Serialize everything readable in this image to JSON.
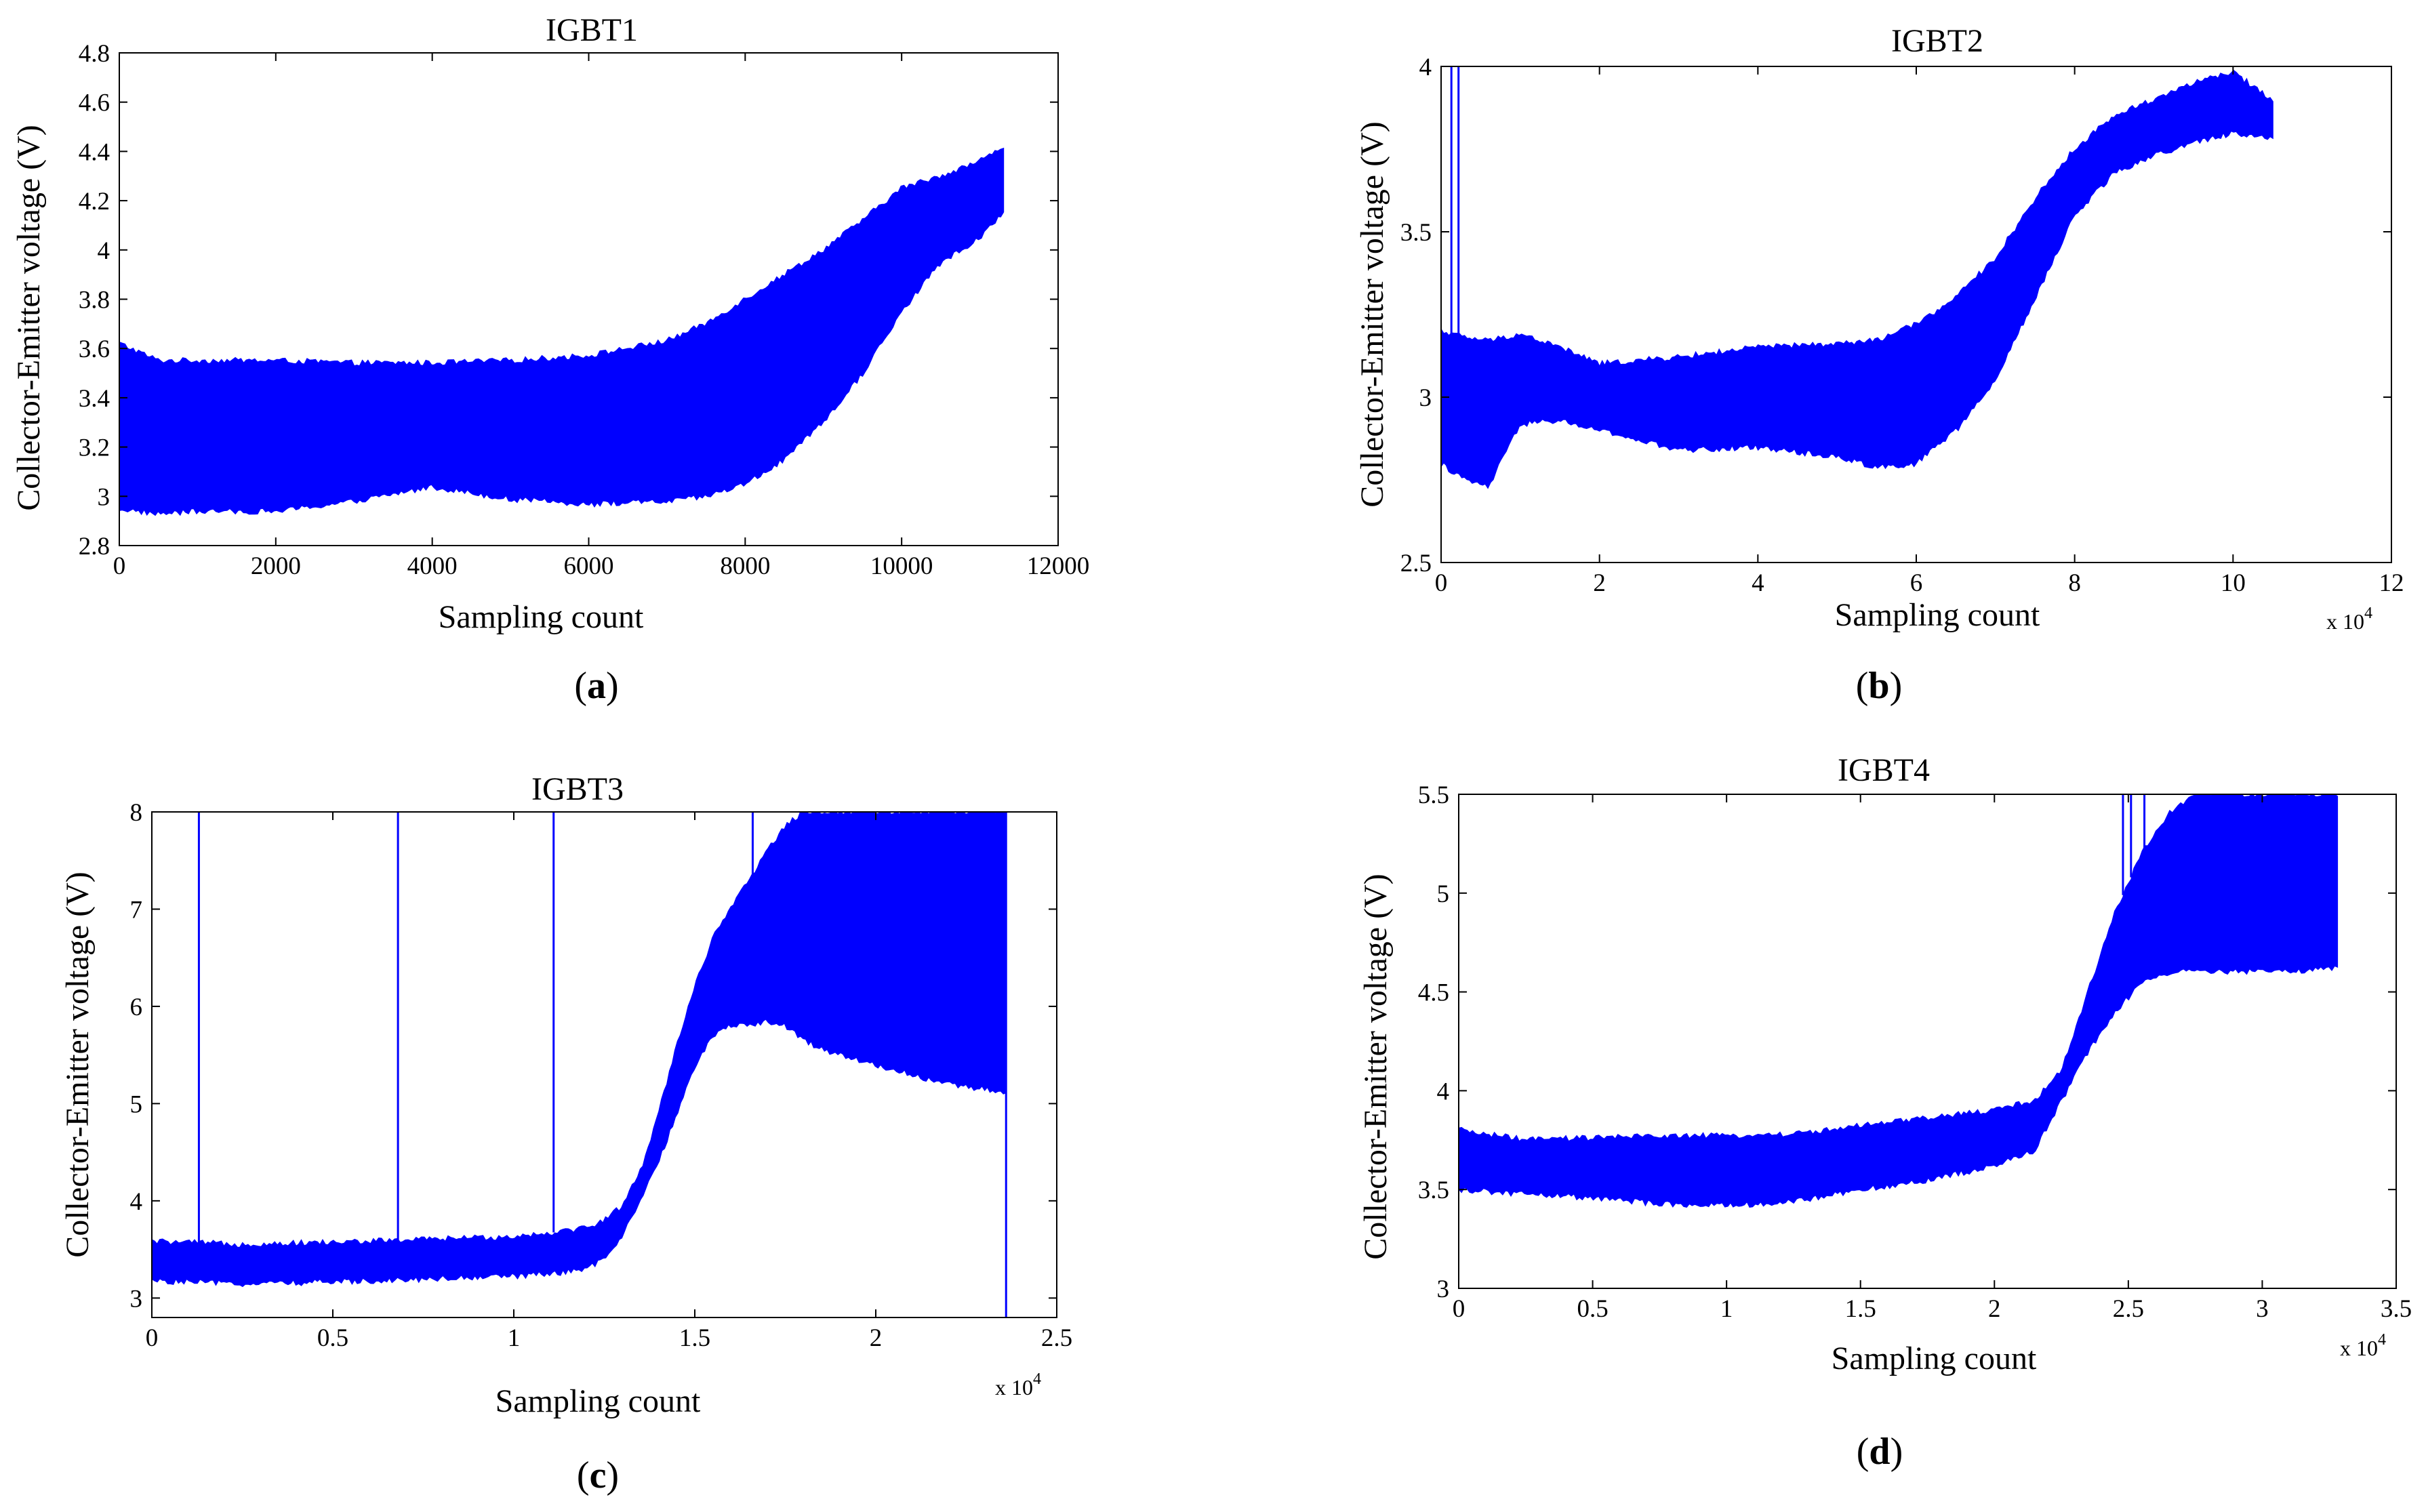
{
  "colors": {
    "series": "#0000ff",
    "axes": "#000000",
    "background": "#ffffff"
  },
  "chart_data": [
    {
      "type": "line",
      "panel": "a",
      "caption": {
        "open": "(",
        "letter": "a",
        "close": ")"
      },
      "title": "IGBT1",
      "xlabel": "Sampling count",
      "ylabel": "Collector-Emitter voltage (V)",
      "xlim": [
        0,
        12000
      ],
      "ylim": [
        2.8,
        4.8
      ],
      "xticks": [
        0,
        2000,
        4000,
        6000,
        8000,
        10000,
        12000
      ],
      "xtick_labels": [
        "0",
        "2000",
        "4000",
        "6000",
        "8000",
        "10000",
        "12000"
      ],
      "yticks": [
        2.8,
        3.0,
        3.2,
        3.4,
        3.6,
        3.8,
        4.0,
        4.2,
        4.4,
        4.6,
        4.8
      ],
      "ytick_labels": [
        "2.8",
        "3",
        "3.2",
        "3.4",
        "3.6",
        "3.8",
        "4",
        "4.2",
        "4.4",
        "4.6",
        "4.8"
      ],
      "x_multiplier": null,
      "series": [
        {
          "name": "Collector-Emitter voltage",
          "x": [
            0,
            500,
            1000,
            2000,
            3000,
            4000,
            5000,
            6000,
            7000,
            7500,
            8000,
            8500,
            9000,
            9500,
            10000,
            10500,
            11000,
            11300
          ],
          "y_max": [
            3.62,
            3.55,
            3.55,
            3.55,
            3.54,
            3.54,
            3.55,
            3.57,
            3.63,
            3.7,
            3.8,
            3.9,
            4.0,
            4.12,
            4.25,
            4.3,
            4.36,
            4.42
          ],
          "y_min": [
            2.95,
            2.93,
            2.94,
            2.94,
            2.98,
            3.04,
            2.99,
            2.97,
            2.98,
            3.0,
            3.05,
            3.15,
            3.3,
            3.5,
            3.75,
            3.95,
            4.05,
            4.15
          ]
        }
      ],
      "spikes": []
    },
    {
      "type": "line",
      "panel": "b",
      "caption": {
        "open": "(",
        "letter": "b",
        "close": ")"
      },
      "title": "IGBT2",
      "xlabel": "Sampling count",
      "ylabel": "Collector-Emitter voltage (V)",
      "xlim": [
        0,
        12
      ],
      "ylim": [
        2.5,
        4.0
      ],
      "xticks": [
        0,
        2,
        4,
        6,
        8,
        10,
        12
      ],
      "xtick_labels": [
        "0",
        "2",
        "4",
        "6",
        "8",
        "10",
        "12"
      ],
      "yticks": [
        2.5,
        3.0,
        3.5,
        4.0
      ],
      "ytick_labels": [
        "2.5",
        "3",
        "3.5",
        "4"
      ],
      "x_multiplier": {
        "base": "x 10",
        "exponent": "4"
      },
      "series": [
        {
          "name": "Collector-Emitter voltage",
          "x": [
            0,
            0.3,
            0.6,
            1.0,
            1.5,
            2.0,
            3.0,
            4.0,
            5.0,
            5.5,
            6.0,
            6.5,
            7.0,
            7.5,
            8.0,
            8.5,
            9.0,
            9.5,
            10.0,
            10.5
          ],
          "y_max": [
            3.2,
            3.18,
            3.17,
            3.19,
            3.15,
            3.1,
            3.12,
            3.15,
            3.16,
            3.17,
            3.22,
            3.3,
            3.42,
            3.6,
            3.75,
            3.85,
            3.9,
            3.95,
            3.98,
            3.9
          ],
          "y_min": [
            2.8,
            2.75,
            2.73,
            2.92,
            2.93,
            2.9,
            2.84,
            2.85,
            2.82,
            2.79,
            2.8,
            2.9,
            3.05,
            3.3,
            3.55,
            3.68,
            3.73,
            3.77,
            3.8,
            3.78
          ]
        }
      ],
      "spikes": [
        {
          "x": 0.13,
          "y_top": 4.0
        },
        {
          "x": 0.22,
          "y_top": 4.0
        }
      ]
    },
    {
      "type": "line",
      "panel": "c",
      "caption": {
        "open": "(",
        "letter": "c",
        "close": ")"
      },
      "title": "IGBT3",
      "xlabel": "Sampling count",
      "ylabel": "Collector-Emitter voltage (V)",
      "xlim": [
        0,
        2.5
      ],
      "ylim": [
        2.8,
        8.0
      ],
      "xticks": [
        0,
        0.5,
        1.0,
        1.5,
        2.0,
        2.5
      ],
      "xtick_labels": [
        "0",
        "0.5",
        "1",
        "1.5",
        "2",
        "2.5"
      ],
      "yticks": [
        3,
        4,
        5,
        6,
        7,
        8
      ],
      "ytick_labels": [
        "3",
        "4",
        "5",
        "6",
        "7",
        "8"
      ],
      "x_multiplier": {
        "base": "x 10",
        "exponent": "4"
      },
      "series": [
        {
          "name": "Collector-Emitter voltage",
          "x": [
            0,
            0.25,
            0.5,
            0.75,
            1.0,
            1.1,
            1.2,
            1.25,
            1.3,
            1.35,
            1.4,
            1.45,
            1.5,
            1.55,
            1.6,
            1.65,
            1.7,
            1.75,
            1.8,
            1.9,
            2.0,
            2.1,
            2.2,
            2.3,
            2.36
          ],
          "y_max": [
            3.58,
            3.55,
            3.57,
            3.6,
            3.63,
            3.67,
            3.72,
            3.8,
            3.95,
            4.3,
            4.9,
            5.6,
            6.2,
            6.7,
            7.0,
            7.3,
            7.6,
            7.85,
            8.0,
            8.0,
            8.0,
            8.0,
            8.0,
            8.0,
            8.0
          ],
          "y_min": [
            3.18,
            3.15,
            3.17,
            3.2,
            3.23,
            3.25,
            3.3,
            3.4,
            3.65,
            4.0,
            4.4,
            4.9,
            5.4,
            5.7,
            5.8,
            5.82,
            5.85,
            5.8,
            5.65,
            5.5,
            5.4,
            5.3,
            5.2,
            5.15,
            5.1
          ]
        }
      ],
      "spikes": [
        {
          "x": 0.13,
          "y_top": 8.0
        },
        {
          "x": 0.68,
          "y_top": 8.0
        },
        {
          "x": 1.11,
          "y_top": 8.0
        },
        {
          "x": 1.66,
          "y_top": 8.0
        },
        {
          "x": 2.36,
          "y_top": 8.0,
          "y_bottom": 2.8
        }
      ]
    },
    {
      "type": "line",
      "panel": "d",
      "caption": {
        "open": "(",
        "letter": "d",
        "close": ")"
      },
      "title": "IGBT4",
      "xlabel": "Sampling count",
      "ylabel": "Collector-Emitter voltage (V)",
      "xlim": [
        0,
        3.5
      ],
      "ylim": [
        3.0,
        5.5
      ],
      "xticks": [
        0,
        0.5,
        1.0,
        1.5,
        2.0,
        2.5,
        3.0,
        3.5
      ],
      "xtick_labels": [
        "0",
        "0.5",
        "1",
        "1.5",
        "2",
        "2.5",
        "3",
        "3.5"
      ],
      "yticks": [
        3.0,
        3.5,
        4.0,
        4.5,
        5.0,
        5.5
      ],
      "ytick_labels": [
        "3",
        "3.5",
        "4",
        "4.5",
        "5",
        "5.5"
      ],
      "x_multiplier": {
        "base": "x 10",
        "exponent": "4"
      },
      "series": [
        {
          "name": "Collector-Emitter voltage",
          "x": [
            0,
            0.25,
            0.5,
            0.75,
            1.0,
            1.25,
            1.5,
            1.75,
            2.0,
            2.15,
            2.25,
            2.35,
            2.45,
            2.55,
            2.65,
            2.75,
            2.85,
            3.0,
            3.15,
            3.28
          ],
          "y_max": [
            3.8,
            3.75,
            3.76,
            3.77,
            3.77,
            3.78,
            3.82,
            3.86,
            3.9,
            3.95,
            4.1,
            4.5,
            4.9,
            5.2,
            5.4,
            5.5,
            5.5,
            5.5,
            5.5,
            5.5
          ],
          "y_min": [
            3.5,
            3.48,
            3.46,
            3.43,
            3.42,
            3.44,
            3.5,
            3.55,
            3.62,
            3.7,
            3.95,
            4.2,
            4.4,
            4.55,
            4.6,
            4.62,
            4.6,
            4.61,
            4.61,
            4.62
          ]
        }
      ],
      "spikes": [
        {
          "x": 2.48,
          "y_top": 5.5
        },
        {
          "x": 2.51,
          "y_top": 5.5
        },
        {
          "x": 2.56,
          "y_top": 5.5
        }
      ]
    }
  ]
}
